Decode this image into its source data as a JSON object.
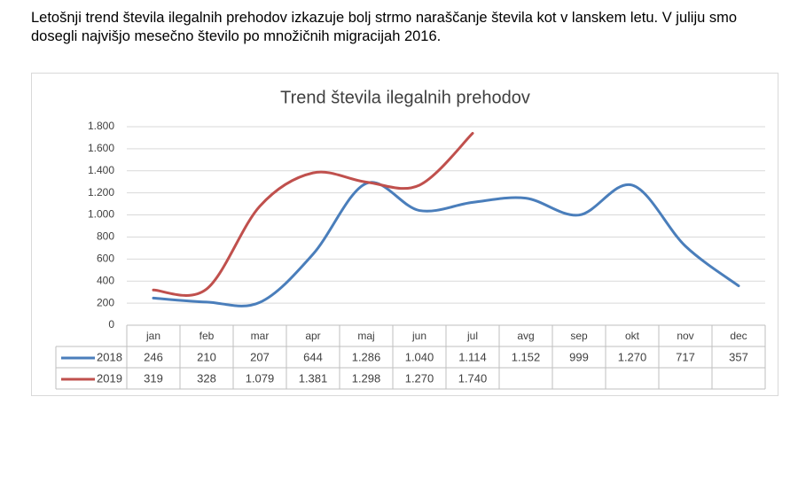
{
  "paragraph": "Letošnji trend števila ilegalnih prehodov izkazuje bolj strmo naraščanje števila kot v lanskem letu. V juliju smo dosegli najvišjo mesečno število po množičnih migracijah 2016.",
  "chart_data": {
    "type": "line",
    "title": "Trend števila ilegalnih prehodov",
    "categories": [
      "jan",
      "feb",
      "mar",
      "apr",
      "maj",
      "jun",
      "jul",
      "avg",
      "sep",
      "okt",
      "nov",
      "dec"
    ],
    "series": [
      {
        "name": "2018",
        "color": "#4a7ebb",
        "values": [
          246,
          210,
          207,
          644,
          1286,
          1040,
          1114,
          1152,
          999,
          1270,
          717,
          357
        ],
        "value_labels": [
          "246",
          "210",
          "207",
          "644",
          "1.286",
          "1.040",
          "1.114",
          "1.152",
          "999",
          "1.270",
          "717",
          "357"
        ]
      },
      {
        "name": "2019",
        "color": "#c0504d",
        "values": [
          319,
          328,
          1079,
          1381,
          1298,
          1270,
          1740,
          null,
          null,
          null,
          null,
          null
        ],
        "value_labels": [
          "319",
          "328",
          "1.079",
          "1.381",
          "1.298",
          "1.270",
          "1.740",
          null,
          null,
          null,
          null,
          null
        ]
      }
    ],
    "ylim": [
      0,
      1800
    ],
    "yticks": [
      0,
      200,
      400,
      600,
      800,
      {
        "value": 1000,
        "label": "1.000"
      },
      {
        "value": 1200,
        "label": "1.200"
      },
      {
        "value": 1400,
        "label": "1.400"
      },
      {
        "value": 1600,
        "label": "1.600"
      },
      {
        "value": 1800,
        "label": "1.800"
      }
    ],
    "grid": true
  }
}
